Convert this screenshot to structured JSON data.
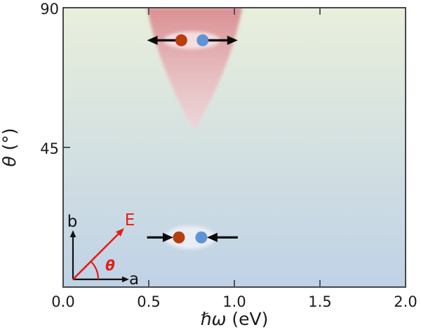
{
  "figure": {
    "background": "#ffffff",
    "frame_color": "#45484c",
    "tick_color": "#45484c",
    "text_color": "#1c1c1c",
    "tick_font_px": 21
  },
  "axes": {
    "xlabel_math": "ℏω",
    "xlabel_unit": " (eV)",
    "ylabel_math": "θ",
    "ylabel_unit": " (°)"
  },
  "chart_data": {
    "type": "scatter",
    "title": "",
    "xlabel": "ℏω (eV)",
    "ylabel": "θ (°)",
    "xlim": [
      0.0,
      2.0
    ],
    "ylim": [
      0,
      90
    ],
    "xticks": {
      "values": [
        0.0,
        0.5,
        1.0,
        1.5,
        2.0
      ],
      "labels": [
        "0.0",
        "0.5",
        "1.0",
        "1.5",
        "2.0"
      ]
    },
    "yticks": {
      "values": [
        45,
        90
      ],
      "labels": [
        "45",
        "90"
      ]
    },
    "grid": false,
    "legend": "none",
    "background_gradient": {
      "top_color": "#e9efdc",
      "bottom_color": "#bfd2e6"
    },
    "cone": {
      "apex_eV": 0.766,
      "apex_theta": 50.5,
      "top_left_eV": 0.49,
      "top_right_eV": 1.046,
      "theta_top": 90,
      "color_top": "#d98b8f",
      "color_mid": "#e7b9bd",
      "color_tip": "#f1d3d7"
    },
    "excitons": [
      {
        "theta": 79.5,
        "red_dot_eV": 0.69,
        "blue_dot_eV": 0.815,
        "arrow_dir": "outward",
        "arrow_span_eV": [
          0.49,
          1.02
        ],
        "halo_color": "#f5dde0",
        "halo_rx": 40,
        "halo_ry": 12.5
      },
      {
        "theta": 16,
        "red_dot_eV": 0.676,
        "blue_dot_eV": 0.807,
        "arrow_dir": "inward",
        "arrow_span_eV": [
          0.49,
          1.02
        ],
        "halo_color": "#e9eef5",
        "halo_rx": 36,
        "halo_ry": 16.5
      }
    ],
    "dot_radius_px": 8.5,
    "dot_colors": {
      "red": "#b83d0f",
      "blue": "#5f93d8"
    },
    "arrow_color": "#0b0b0b"
  },
  "inset": {
    "a_label": "a",
    "b_label": "b",
    "field_label": "E",
    "angle_label": "θ",
    "accent_color": "#e51d15",
    "axes_color": "#111111"
  }
}
